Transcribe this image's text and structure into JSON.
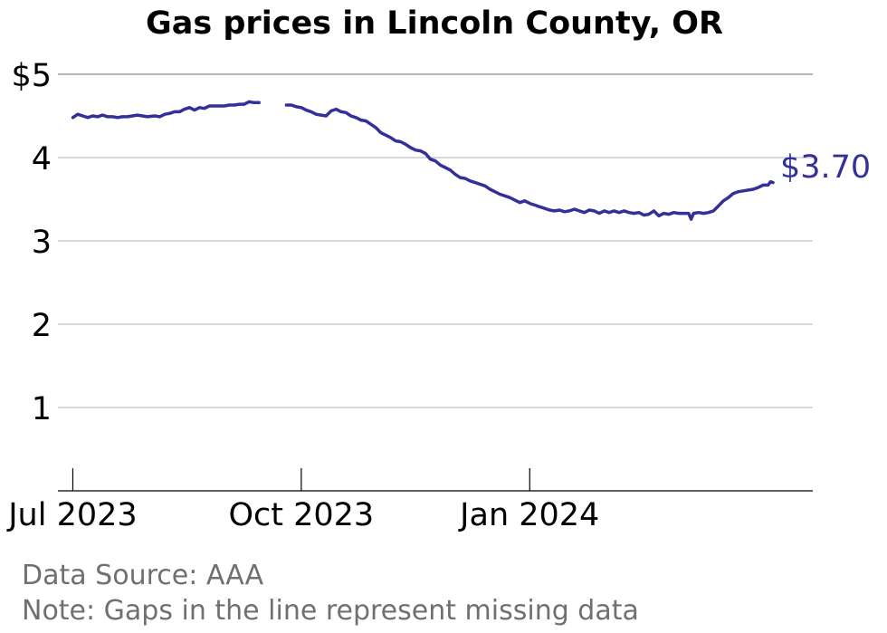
{
  "chart_data": {
    "type": "line",
    "title": "Gas prices in Lincoln County, OR",
    "xlabel": "",
    "ylabel": "",
    "ylim": [
      0,
      5
    ],
    "yticks": [
      {
        "value": 5,
        "label": "$5"
      },
      {
        "value": 4,
        "label": "4"
      },
      {
        "value": 3,
        "label": "3"
      },
      {
        "value": 2,
        "label": "2"
      },
      {
        "value": 1,
        "label": "1"
      }
    ],
    "xlim": [
      "2023-06-25",
      "2024-04-24"
    ],
    "xticks": [
      {
        "date": "2023-07-01",
        "label": "Jul 2023"
      },
      {
        "date": "2023-10-01",
        "label": "Oct 2023"
      },
      {
        "date": "2024-01-01",
        "label": "Jan 2024"
      }
    ],
    "grid": true,
    "end_label": "$3.70",
    "series_color": "#33309a",
    "segments": [
      [
        [
          "2023-07-01",
          4.48
        ],
        [
          "2023-07-03",
          4.52
        ],
        [
          "2023-07-05",
          4.5
        ],
        [
          "2023-07-07",
          4.48
        ],
        [
          "2023-07-09",
          4.5
        ],
        [
          "2023-07-11",
          4.49
        ],
        [
          "2023-07-13",
          4.51
        ],
        [
          "2023-07-15",
          4.49
        ],
        [
          "2023-07-17",
          4.49
        ],
        [
          "2023-07-19",
          4.48
        ],
        [
          "2023-07-21",
          4.49
        ],
        [
          "2023-07-23",
          4.49
        ],
        [
          "2023-07-25",
          4.5
        ],
        [
          "2023-07-27",
          4.51
        ],
        [
          "2023-07-29",
          4.5
        ],
        [
          "2023-07-31",
          4.49
        ],
        [
          "2023-08-03",
          4.5
        ],
        [
          "2023-08-05",
          4.49
        ],
        [
          "2023-08-07",
          4.52
        ],
        [
          "2023-08-09",
          4.53
        ],
        [
          "2023-08-11",
          4.55
        ],
        [
          "2023-08-13",
          4.55
        ],
        [
          "2023-08-15",
          4.58
        ],
        [
          "2023-08-17",
          4.6
        ],
        [
          "2023-08-19",
          4.57
        ],
        [
          "2023-08-21",
          4.6
        ],
        [
          "2023-08-23",
          4.59
        ],
        [
          "2023-08-25",
          4.62
        ],
        [
          "2023-08-27",
          4.62
        ],
        [
          "2023-08-29",
          4.62
        ],
        [
          "2023-08-31",
          4.62
        ],
        [
          "2023-09-02",
          4.63
        ],
        [
          "2023-09-04",
          4.63
        ],
        [
          "2023-09-06",
          4.64
        ],
        [
          "2023-09-08",
          4.64
        ],
        [
          "2023-09-10",
          4.67
        ],
        [
          "2023-09-12",
          4.66
        ],
        [
          "2023-09-14",
          4.66
        ]
      ],
      [
        [
          "2023-09-25",
          4.63
        ],
        [
          "2023-09-27",
          4.63
        ],
        [
          "2023-09-29",
          4.61
        ],
        [
          "2023-10-01",
          4.6
        ],
        [
          "2023-10-03",
          4.57
        ],
        [
          "2023-10-05",
          4.55
        ],
        [
          "2023-10-07",
          4.52
        ],
        [
          "2023-10-09",
          4.51
        ],
        [
          "2023-10-11",
          4.5
        ],
        [
          "2023-10-13",
          4.56
        ],
        [
          "2023-10-15",
          4.58
        ],
        [
          "2023-10-17",
          4.55
        ],
        [
          "2023-10-19",
          4.54
        ],
        [
          "2023-10-21",
          4.5
        ],
        [
          "2023-10-23",
          4.48
        ],
        [
          "2023-10-25",
          4.45
        ],
        [
          "2023-10-27",
          4.44
        ],
        [
          "2023-10-29",
          4.4
        ],
        [
          "2023-10-31",
          4.36
        ],
        [
          "2023-11-02",
          4.3
        ],
        [
          "2023-11-04",
          4.27
        ],
        [
          "2023-11-06",
          4.24
        ],
        [
          "2023-11-08",
          4.2
        ],
        [
          "2023-11-10",
          4.19
        ],
        [
          "2023-11-12",
          4.16
        ],
        [
          "2023-11-14",
          4.12
        ],
        [
          "2023-11-16",
          4.09
        ],
        [
          "2023-11-18",
          4.08
        ],
        [
          "2023-11-20",
          4.05
        ],
        [
          "2023-11-22",
          3.98
        ],
        [
          "2023-11-24",
          3.96
        ],
        [
          "2023-11-26",
          3.91
        ],
        [
          "2023-11-28",
          3.88
        ],
        [
          "2023-11-30",
          3.85
        ],
        [
          "2023-12-02",
          3.8
        ],
        [
          "2023-12-04",
          3.76
        ],
        [
          "2023-12-06",
          3.75
        ],
        [
          "2023-12-08",
          3.72
        ],
        [
          "2023-12-10",
          3.7
        ],
        [
          "2023-12-12",
          3.68
        ],
        [
          "2023-12-14",
          3.66
        ],
        [
          "2023-12-16",
          3.62
        ],
        [
          "2023-12-18",
          3.59
        ],
        [
          "2023-12-20",
          3.56
        ],
        [
          "2023-12-22",
          3.54
        ],
        [
          "2023-12-24",
          3.52
        ],
        [
          "2023-12-26",
          3.49
        ],
        [
          "2023-12-28",
          3.46
        ],
        [
          "2023-12-30",
          3.48
        ],
        [
          "2024-01-01",
          3.45
        ],
        [
          "2024-01-03",
          3.43
        ],
        [
          "2024-01-05",
          3.41
        ],
        [
          "2024-01-07",
          3.39
        ],
        [
          "2024-01-09",
          3.37
        ],
        [
          "2024-01-11",
          3.36
        ],
        [
          "2024-01-13",
          3.37
        ],
        [
          "2024-01-15",
          3.35
        ],
        [
          "2024-01-17",
          3.36
        ],
        [
          "2024-01-19",
          3.38
        ],
        [
          "2024-01-21",
          3.36
        ],
        [
          "2024-01-23",
          3.34
        ],
        [
          "2024-01-25",
          3.37
        ],
        [
          "2024-01-27",
          3.36
        ],
        [
          "2024-01-29",
          3.33
        ],
        [
          "2024-01-31",
          3.36
        ],
        [
          "2024-02-02",
          3.34
        ],
        [
          "2024-02-04",
          3.36
        ],
        [
          "2024-02-06",
          3.34
        ],
        [
          "2024-02-08",
          3.36
        ],
        [
          "2024-02-10",
          3.34
        ],
        [
          "2024-02-12",
          3.33
        ],
        [
          "2024-02-14",
          3.34
        ],
        [
          "2024-02-16",
          3.31
        ],
        [
          "2024-02-18",
          3.32
        ],
        [
          "2024-02-20",
          3.36
        ],
        [
          "2024-02-22",
          3.3
        ],
        [
          "2024-02-24",
          3.33
        ],
        [
          "2024-02-26",
          3.32
        ],
        [
          "2024-02-28",
          3.34
        ],
        [
          "2024-03-01",
          3.33
        ],
        [
          "2024-03-03",
          3.33
        ],
        [
          "2024-03-05",
          3.33
        ],
        [
          "2024-03-06",
          3.26
        ],
        [
          "2024-03-07",
          3.33
        ],
        [
          "2024-03-09",
          3.34
        ],
        [
          "2024-03-11",
          3.33
        ],
        [
          "2024-03-13",
          3.34
        ],
        [
          "2024-03-15",
          3.36
        ],
        [
          "2024-03-17",
          3.42
        ],
        [
          "2024-03-19",
          3.48
        ],
        [
          "2024-03-21",
          3.52
        ],
        [
          "2024-03-23",
          3.57
        ],
        [
          "2024-03-25",
          3.59
        ],
        [
          "2024-03-27",
          3.6
        ],
        [
          "2024-03-29",
          3.61
        ],
        [
          "2024-03-31",
          3.62
        ],
        [
          "2024-04-02",
          3.64
        ],
        [
          "2024-04-04",
          3.67
        ],
        [
          "2024-04-06",
          3.67
        ],
        [
          "2024-04-07",
          3.71
        ],
        [
          "2024-04-08",
          3.7
        ]
      ]
    ]
  },
  "footnotes": {
    "source": "Data Source: AAA",
    "note": "Note: Gaps in the line represent missing data"
  }
}
